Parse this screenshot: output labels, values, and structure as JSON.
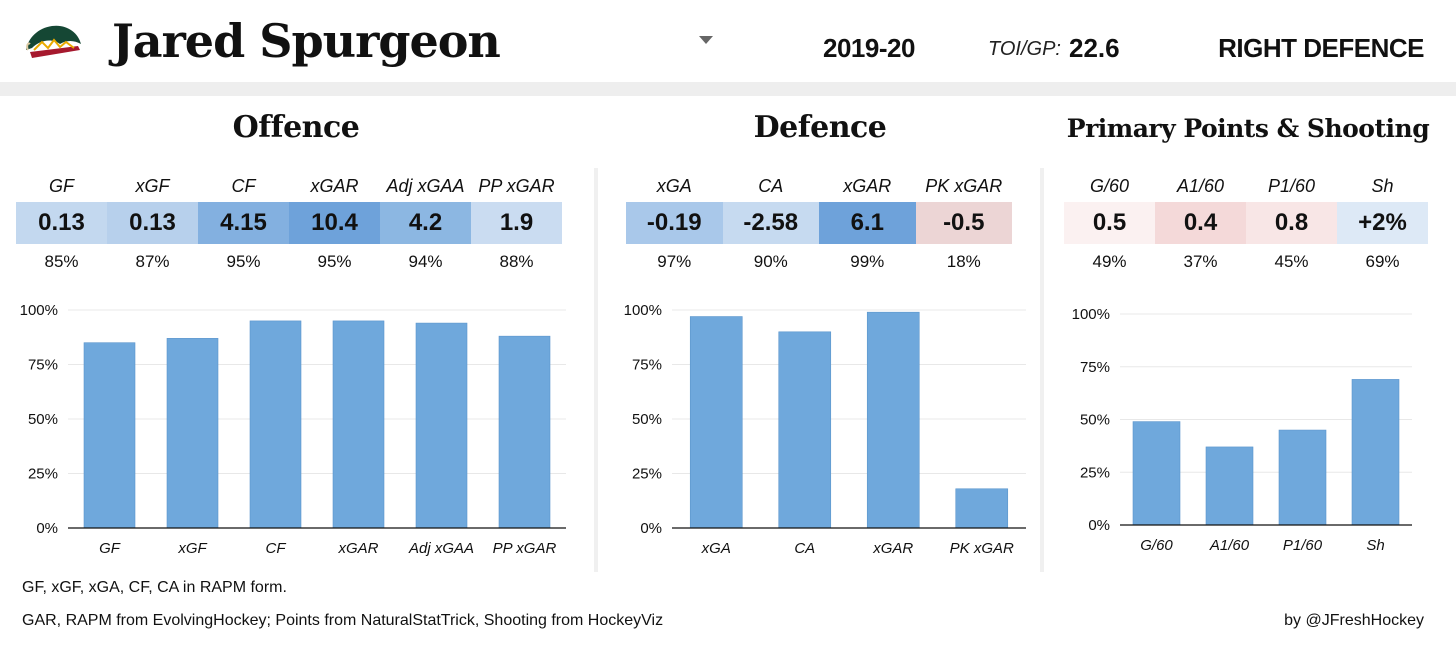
{
  "header": {
    "player_name": "Jared Spurgeon",
    "season": "2019-20",
    "toi_label": "TOI/GP:",
    "toi_value": "22.6",
    "position": "RIGHT DEFENCE",
    "team_logo": "minnesota-wild-logo"
  },
  "sections": {
    "offence": {
      "title": "Offence",
      "labels": [
        "GF",
        "xGF",
        "CF",
        "xGAR",
        "Adj xGAA",
        "PP xGAR"
      ],
      "values": [
        "0.13",
        "0.13",
        "4.15",
        "10.4",
        "4.2",
        "1.9"
      ],
      "percentiles": [
        "85%",
        "87%",
        "95%",
        "95%",
        "94%",
        "88%"
      ],
      "cell_colors": [
        "#c3d8ef",
        "#b7d0ec",
        "#83b0e0",
        "#6ea2da",
        "#8cb7e2",
        "#cadcf1"
      ]
    },
    "defence": {
      "title": "Defence",
      "labels": [
        "xGA",
        "CA",
        "xGAR",
        "PK xGAR"
      ],
      "values": [
        "-0.19",
        "-2.58",
        "6.1",
        "-0.5"
      ],
      "percentiles": [
        "97%",
        "90%",
        "99%",
        "18%"
      ],
      "cell_colors": [
        "#a9c8ea",
        "#c6daf0",
        "#6ea2da",
        "#ecd5d5"
      ]
    },
    "shooting": {
      "title": "Primary Points & Shooting",
      "labels": [
        "G/60",
        "A1/60",
        "P1/60",
        "Sh"
      ],
      "values": [
        "0.5",
        "0.4",
        "0.8",
        "+2%"
      ],
      "percentiles": [
        "49%",
        "37%",
        "45%",
        "69%"
      ],
      "cell_colors": [
        "#fbf1f1",
        "#f4d9d9",
        "#f8e6e6",
        "#dde9f6"
      ]
    }
  },
  "chart_data": [
    {
      "type": "bar",
      "categories": [
        "GF",
        "xGF",
        "CF",
        "xGAR",
        "Adj xGAA",
        "PP xGAR"
      ],
      "values": [
        85,
        87,
        95,
        95,
        94,
        88
      ],
      "ylim": [
        0,
        100
      ],
      "yticks": [
        "0%",
        "25%",
        "50%",
        "75%",
        "100%"
      ],
      "grid": true,
      "color": "#6fa8dc"
    },
    {
      "type": "bar",
      "categories": [
        "xGA",
        "CA",
        "xGAR",
        "PK xGAR"
      ],
      "values": [
        97,
        90,
        99,
        18
      ],
      "ylim": [
        0,
        100
      ],
      "yticks": [
        "0%",
        "25%",
        "50%",
        "75%",
        "100%"
      ],
      "grid": true,
      "color": "#6fa8dc"
    },
    {
      "type": "bar",
      "categories": [
        "G/60",
        "A1/60",
        "P1/60",
        "Sh"
      ],
      "values": [
        49,
        37,
        45,
        69
      ],
      "ylim": [
        0,
        100
      ],
      "yticks": [
        "0%",
        "25%",
        "50%",
        "75%",
        "100%"
      ],
      "grid": true,
      "color": "#6fa8dc"
    }
  ],
  "footer": {
    "note1": "GF, xGF, xGA, CF, CA in RAPM form.",
    "note2": "GAR, RAPM from EvolvingHockey; Points from NaturalStatTrick, Shooting from HockeyViz",
    "credit": "by @JFreshHockey"
  }
}
